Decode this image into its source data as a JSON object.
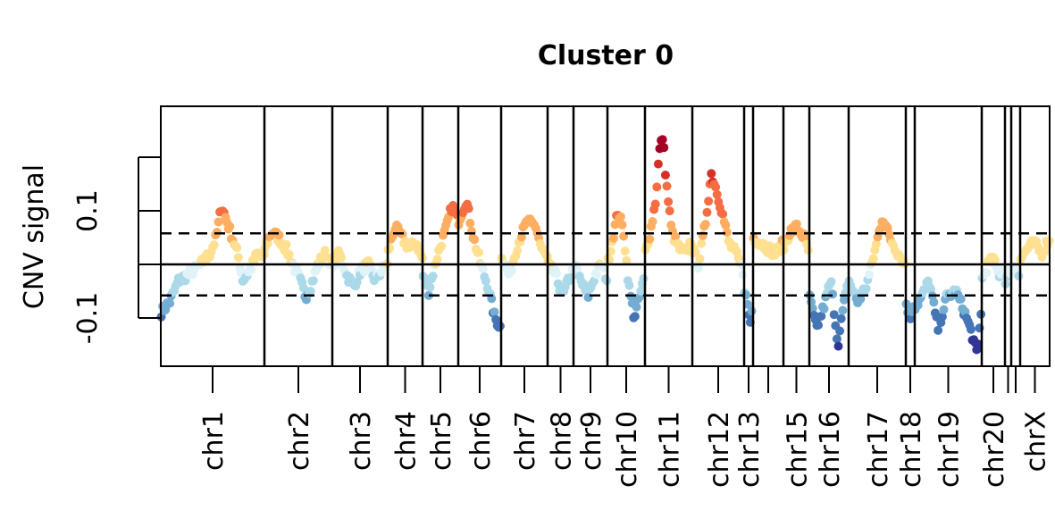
{
  "chart_data": {
    "type": "scatter",
    "title": "Cluster 0",
    "xlabel": "",
    "ylabel": "CNV signal",
    "ylim": [
      -0.19,
      0.295
    ],
    "y_ticks": [
      -0.1,
      0,
      0.1,
      0.2
    ],
    "y_tick_labels": [
      "-0.1",
      "",
      "0.1",
      ""
    ],
    "reference_lines": [
      {
        "y": 0.0,
        "style": "solid"
      },
      {
        "y": 0.058,
        "style": "dashed"
      },
      {
        "y": -0.058,
        "style": "dashed"
      }
    ],
    "colors": {
      "deep_red": "#a50026",
      "red": "#d73027",
      "orange_red": "#f46d43",
      "orange": "#fdae61",
      "yellow": "#fee090",
      "pale_blue": "#e0f3f8",
      "light_blue": "#abd9e9",
      "blue": "#74add1",
      "mid_blue": "#4575b4",
      "dark_blue": "#313695"
    },
    "chromosomes": [
      {
        "label": "chr1",
        "start": 0,
        "end": 116,
        "profile": [
          [
            0,
            -0.09
          ],
          [
            10,
            -0.07
          ],
          [
            20,
            -0.03
          ],
          [
            30,
            -0.02
          ],
          [
            45,
            0.0
          ],
          [
            55,
            0.02
          ],
          [
            62,
            0.05
          ],
          [
            68,
            0.11
          ],
          [
            72,
            0.09
          ],
          [
            76,
            0.07
          ],
          [
            80,
            0.05
          ],
          [
            86,
            0.02
          ],
          [
            92,
            -0.03
          ],
          [
            100,
            -0.01
          ],
          [
            108,
            0.02
          ],
          [
            116,
            0.01
          ]
        ]
      },
      {
        "label": "chr2",
        "start": 116,
        "end": 192,
        "profile": [
          [
            116,
            0.03
          ],
          [
            124,
            0.06
          ],
          [
            132,
            0.05
          ],
          [
            140,
            0.03
          ],
          [
            148,
            0.0
          ],
          [
            156,
            -0.03
          ],
          [
            162,
            -0.06
          ],
          [
            168,
            -0.04
          ],
          [
            176,
            0.0
          ],
          [
            184,
            0.02
          ],
          [
            192,
            0.0
          ]
        ]
      },
      {
        "label": "chr3",
        "start": 192,
        "end": 254,
        "profile": [
          [
            192,
            0.0
          ],
          [
            200,
            0.02
          ],
          [
            208,
            -0.02
          ],
          [
            216,
            -0.04
          ],
          [
            224,
            -0.01
          ],
          [
            232,
            0.0
          ],
          [
            240,
            -0.03
          ],
          [
            248,
            -0.01
          ],
          [
            254,
            0.0
          ]
        ]
      },
      {
        "label": "chr4",
        "start": 254,
        "end": 293,
        "profile": [
          [
            254,
            0.02
          ],
          [
            262,
            0.07
          ],
          [
            270,
            0.05
          ],
          [
            278,
            0.03
          ],
          [
            286,
            0.04
          ],
          [
            293,
            0.01
          ]
        ]
      },
      {
        "label": "chr5",
        "start": 293,
        "end": 333,
        "profile": [
          [
            293,
            -0.02
          ],
          [
            300,
            -0.05
          ],
          [
            307,
            0.0
          ],
          [
            314,
            0.04
          ],
          [
            320,
            0.07
          ],
          [
            326,
            0.11
          ],
          [
            333,
            0.08
          ]
        ]
      },
      {
        "label": "chr6",
        "start": 333,
        "end": 381,
        "profile": [
          [
            333,
            0.08
          ],
          [
            342,
            0.12
          ],
          [
            350,
            0.05
          ],
          [
            358,
            0.0
          ],
          [
            366,
            -0.04
          ],
          [
            374,
            -0.1
          ],
          [
            381,
            -0.12
          ]
        ]
      },
      {
        "label": "chr7",
        "start": 381,
        "end": 433,
        "profile": [
          [
            381,
            0.02
          ],
          [
            390,
            -0.02
          ],
          [
            400,
            0.04
          ],
          [
            410,
            0.08
          ],
          [
            420,
            0.07
          ],
          [
            426,
            0.03
          ],
          [
            433,
            0.01
          ]
        ]
      },
      {
        "label": "chr8",
        "start": 433,
        "end": 462,
        "profile": [
          [
            433,
            0.0
          ],
          [
            442,
            -0.02
          ],
          [
            450,
            -0.06
          ],
          [
            456,
            -0.03
          ],
          [
            462,
            -0.01
          ]
        ]
      },
      {
        "label": "chr9",
        "start": 462,
        "end": 500,
        "profile": [
          [
            462,
            0.0
          ],
          [
            470,
            -0.03
          ],
          [
            478,
            -0.06
          ],
          [
            486,
            -0.02
          ],
          [
            493,
            0.0
          ],
          [
            500,
            -0.03
          ]
        ]
      },
      {
        "label": "chr10",
        "start": 500,
        "end": 542,
        "profile": [
          [
            500,
            0.0
          ],
          [
            506,
            0.05
          ],
          [
            512,
            0.1
          ],
          [
            518,
            0.06
          ],
          [
            524,
            -0.04
          ],
          [
            530,
            -0.1
          ],
          [
            536,
            -0.06
          ],
          [
            542,
            -0.02
          ]
        ]
      },
      {
        "label": "chr11",
        "start": 542,
        "end": 595,
        "profile": [
          [
            542,
            0.02
          ],
          [
            548,
            0.06
          ],
          [
            554,
            0.12
          ],
          [
            558,
            0.21
          ],
          [
            562,
            0.24
          ],
          [
            566,
            0.15
          ],
          [
            572,
            0.06
          ],
          [
            580,
            0.03
          ],
          [
            588,
            0.02
          ],
          [
            595,
            0.05
          ]
        ]
      },
      {
        "label": "chr12",
        "start": 595,
        "end": 653,
        "profile": [
          [
            595,
            0.03
          ],
          [
            602,
            0.0
          ],
          [
            610,
            0.08
          ],
          [
            616,
            0.17
          ],
          [
            622,
            0.14
          ],
          [
            628,
            0.1
          ],
          [
            636,
            0.04
          ],
          [
            644,
            0.02
          ],
          [
            653,
            -0.02
          ]
        ]
      },
      {
        "label": "chr13",
        "start": 653,
        "end": 663,
        "profile": [
          [
            653,
            -0.04
          ],
          [
            657,
            -0.08
          ],
          [
            660,
            -0.11
          ],
          [
            663,
            -0.06
          ]
        ]
      },
      {
        "label": "",
        "start": 663,
        "end": 697,
        "profile": [
          [
            663,
            0.05
          ],
          [
            672,
            0.04
          ],
          [
            680,
            0.03
          ],
          [
            688,
            0.02
          ],
          [
            697,
            0.04
          ]
        ]
      },
      {
        "label": "chr15",
        "start": 697,
        "end": 726,
        "profile": [
          [
            697,
            0.03
          ],
          [
            704,
            0.06
          ],
          [
            712,
            0.07
          ],
          [
            720,
            0.05
          ],
          [
            726,
            0.02
          ]
        ]
      },
      {
        "label": "chr16",
        "start": 726,
        "end": 770,
        "profile": [
          [
            726,
            -0.06
          ],
          [
            734,
            -0.12
          ],
          [
            742,
            -0.08
          ],
          [
            750,
            -0.03
          ],
          [
            758,
            -0.15
          ],
          [
            764,
            -0.08
          ],
          [
            770,
            -0.03
          ]
        ]
      },
      {
        "label": "chr17",
        "start": 770,
        "end": 834,
        "profile": [
          [
            770,
            -0.03
          ],
          [
            780,
            -0.07
          ],
          [
            790,
            -0.04
          ],
          [
            800,
            0.03
          ],
          [
            808,
            0.09
          ],
          [
            816,
            0.05
          ],
          [
            826,
            0.02
          ],
          [
            834,
            0.0
          ]
        ]
      },
      {
        "label": "chr18",
        "start": 834,
        "end": 844,
        "profile": [
          [
            834,
            -0.07
          ],
          [
            839,
            -0.1
          ],
          [
            844,
            -0.06
          ]
        ]
      },
      {
        "label": "chr19",
        "start": 844,
        "end": 919,
        "profile": [
          [
            844,
            -0.08
          ],
          [
            852,
            -0.06
          ],
          [
            860,
            -0.03
          ],
          [
            870,
            -0.12
          ],
          [
            880,
            -0.06
          ],
          [
            890,
            -0.05
          ],
          [
            900,
            -0.09
          ],
          [
            908,
            -0.13
          ],
          [
            914,
            -0.17
          ],
          [
            919,
            -0.07
          ]
        ]
      },
      {
        "label": "chr20",
        "start": 919,
        "end": 945,
        "profile": [
          [
            919,
            -0.03
          ],
          [
            926,
            0.0
          ],
          [
            932,
            0.01
          ],
          [
            938,
            -0.02
          ],
          [
            945,
            0.0
          ]
        ]
      },
      {
        "label": "",
        "start": 945,
        "end": 952,
        "profile": [
          [
            945,
            -0.03
          ],
          [
            952,
            -0.01
          ]
        ]
      },
      {
        "label": "",
        "start": 952,
        "end": 962,
        "profile": [
          [
            952,
            -0.01
          ],
          [
            957,
            0.0
          ],
          [
            962,
            -0.02
          ]
        ]
      },
      {
        "label": "chrX",
        "start": 962,
        "end": 995,
        "profile": [
          [
            962,
            0.01
          ],
          [
            970,
            0.03
          ],
          [
            978,
            0.04
          ],
          [
            986,
            0.02
          ],
          [
            995,
            0.05
          ]
        ]
      }
    ],
    "legend": "none",
    "grid": false
  }
}
